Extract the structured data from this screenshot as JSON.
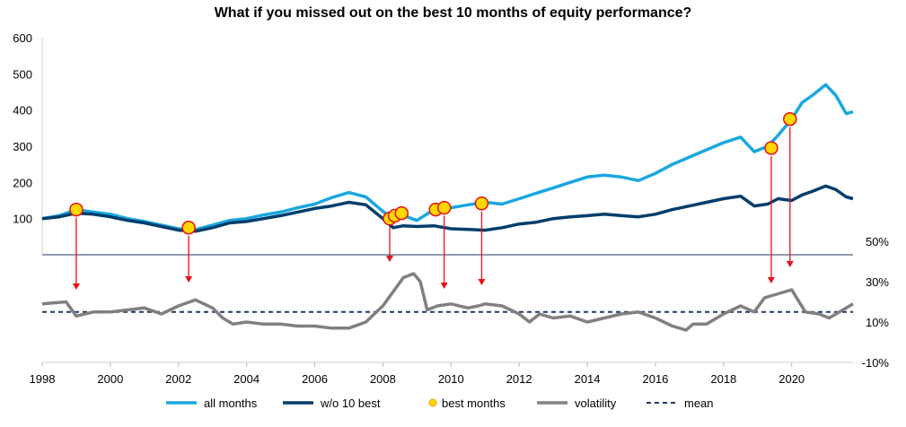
{
  "chart_data": {
    "type": "line",
    "title": "What if you missed out on the best 10 months of equity performance?",
    "x_ticks": [
      "1998",
      "2000",
      "2002",
      "2004",
      "2006",
      "2008",
      "2010",
      "2012",
      "2014",
      "2016",
      "2018",
      "2020"
    ],
    "xlim": [
      1998,
      2021.8
    ],
    "top_panel": {
      "ylim": [
        0,
        600
      ],
      "y_ticks": [
        "600",
        "500",
        "400",
        "300",
        "200",
        "100"
      ],
      "series": [
        {
          "name": "all months",
          "color": "#1aa7e0",
          "points": [
            [
              1998,
              100
            ],
            [
              1998.5,
              108
            ],
            [
              1999,
              125
            ],
            [
              1999.5,
              118
            ],
            [
              2000,
              112
            ],
            [
              2000.5,
              100
            ],
            [
              2001,
              92
            ],
            [
              2001.5,
              82
            ],
            [
              2002,
              72
            ],
            [
              2002.5,
              70
            ],
            [
              2003,
              82
            ],
            [
              2003.5,
              95
            ],
            [
              2004,
              100
            ],
            [
              2004.5,
              110
            ],
            [
              2005,
              118
            ],
            [
              2005.5,
              130
            ],
            [
              2006,
              140
            ],
            [
              2006.5,
              158
            ],
            [
              2007,
              172
            ],
            [
              2007.5,
              160
            ],
            [
              2008,
              120
            ],
            [
              2008.3,
              100
            ],
            [
              2008.6,
              108
            ],
            [
              2009,
              95
            ],
            [
              2009.5,
              125
            ],
            [
              2010,
              130
            ],
            [
              2010.5,
              138
            ],
            [
              2011,
              145
            ],
            [
              2011.5,
              140
            ],
            [
              2012,
              155
            ],
            [
              2012.5,
              170
            ],
            [
              2013,
              185
            ],
            [
              2013.5,
              200
            ],
            [
              2014,
              215
            ],
            [
              2014.5,
              220
            ],
            [
              2015,
              215
            ],
            [
              2015.5,
              205
            ],
            [
              2016,
              225
            ],
            [
              2016.5,
              250
            ],
            [
              2017,
              270
            ],
            [
              2017.5,
              290
            ],
            [
              2018,
              310
            ],
            [
              2018.5,
              325
            ],
            [
              2018.9,
              285
            ],
            [
              2019.3,
              300
            ],
            [
              2019.6,
              330
            ],
            [
              2020,
              375
            ],
            [
              2020.3,
              420
            ],
            [
              2020.6,
              440
            ],
            [
              2021,
              470
            ],
            [
              2021.3,
              440
            ],
            [
              2021.6,
              390
            ],
            [
              2021.8,
              395
            ]
          ]
        },
        {
          "name": "w/o 10 best",
          "color": "#003d6b",
          "points": [
            [
              1998,
              100
            ],
            [
              1998.5,
              105
            ],
            [
              1999,
              115
            ],
            [
              1999.5,
              112
            ],
            [
              2000,
              105
            ],
            [
              2000.5,
              95
            ],
            [
              2001,
              88
            ],
            [
              2001.5,
              78
            ],
            [
              2002,
              68
            ],
            [
              2002.5,
              65
            ],
            [
              2003,
              75
            ],
            [
              2003.5,
              88
            ],
            [
              2004,
              92
            ],
            [
              2004.5,
              100
            ],
            [
              2005,
              108
            ],
            [
              2005.5,
              118
            ],
            [
              2006,
              128
            ],
            [
              2006.5,
              135
            ],
            [
              2007,
              145
            ],
            [
              2007.5,
              138
            ],
            [
              2008,
              100
            ],
            [
              2008.3,
              75
            ],
            [
              2008.6,
              80
            ],
            [
              2009,
              78
            ],
            [
              2009.5,
              80
            ],
            [
              2010,
              72
            ],
            [
              2010.5,
              70
            ],
            [
              2011,
              68
            ],
            [
              2011.5,
              75
            ],
            [
              2012,
              85
            ],
            [
              2012.5,
              90
            ],
            [
              2013,
              100
            ],
            [
              2013.5,
              105
            ],
            [
              2014,
              108
            ],
            [
              2014.5,
              112
            ],
            [
              2015,
              108
            ],
            [
              2015.5,
              105
            ],
            [
              2016,
              112
            ],
            [
              2016.5,
              125
            ],
            [
              2017,
              135
            ],
            [
              2017.5,
              145
            ],
            [
              2018,
              155
            ],
            [
              2018.5,
              162
            ],
            [
              2018.9,
              135
            ],
            [
              2019.3,
              140
            ],
            [
              2019.6,
              155
            ],
            [
              2020,
              150
            ],
            [
              2020.3,
              165
            ],
            [
              2020.6,
              175
            ],
            [
              2021,
              190
            ],
            [
              2021.3,
              180
            ],
            [
              2021.6,
              160
            ],
            [
              2021.8,
              155
            ]
          ]
        }
      ],
      "best_months": [
        {
          "x": 1999.0,
          "y": 125
        },
        {
          "x": 2002.3,
          "y": 75
        },
        {
          "x": 2008.2,
          "y": 100
        },
        {
          "x": 2008.35,
          "y": 108
        },
        {
          "x": 2008.55,
          "y": 115
        },
        {
          "x": 2009.55,
          "y": 125
        },
        {
          "x": 2009.8,
          "y": 130
        },
        {
          "x": 2010.9,
          "y": 142
        },
        {
          "x": 2019.4,
          "y": 295
        },
        {
          "x": 2019.95,
          "y": 375
        }
      ],
      "best_months_name": "best months",
      "best_months_fill": "#ffd700",
      "best_months_stroke": "#e8101a"
    },
    "bottom_panel": {
      "ylim": [
        -10,
        50
      ],
      "y_ticks": [
        "50%",
        "30%",
        "10%",
        "-10%"
      ],
      "y_tick_values": [
        50,
        30,
        10,
        -10
      ],
      "volatility": {
        "name": "volatility",
        "color": "#808080",
        "points": [
          [
            1998,
            19
          ],
          [
            1998.7,
            20
          ],
          [
            1999,
            13
          ],
          [
            1999.5,
            15
          ],
          [
            2000,
            15
          ],
          [
            2000.5,
            16
          ],
          [
            2001,
            17
          ],
          [
            2001.5,
            14
          ],
          [
            2002,
            18
          ],
          [
            2002.5,
            21
          ],
          [
            2003,
            17
          ],
          [
            2003.3,
            12
          ],
          [
            2003.6,
            9
          ],
          [
            2004,
            10
          ],
          [
            2004.5,
            9
          ],
          [
            2005,
            9
          ],
          [
            2005.5,
            8
          ],
          [
            2006,
            8
          ],
          [
            2006.5,
            7
          ],
          [
            2007,
            7
          ],
          [
            2007.5,
            10
          ],
          [
            2008,
            18
          ],
          [
            2008.3,
            25
          ],
          [
            2008.6,
            32
          ],
          [
            2008.9,
            34
          ],
          [
            2009.1,
            30
          ],
          [
            2009.3,
            16
          ],
          [
            2009.6,
            18
          ],
          [
            2010,
            19
          ],
          [
            2010.5,
            17
          ],
          [
            2010.8,
            18
          ],
          [
            2011,
            19
          ],
          [
            2011.5,
            18
          ],
          [
            2012,
            14
          ],
          [
            2012.3,
            10
          ],
          [
            2012.6,
            14
          ],
          [
            2013,
            12
          ],
          [
            2013.5,
            13
          ],
          [
            2014,
            10
          ],
          [
            2014.5,
            12
          ],
          [
            2015,
            14
          ],
          [
            2015.5,
            15
          ],
          [
            2016,
            12
          ],
          [
            2016.5,
            8
          ],
          [
            2016.9,
            6
          ],
          [
            2017.1,
            9
          ],
          [
            2017.5,
            9
          ],
          [
            2018,
            14
          ],
          [
            2018.5,
            18
          ],
          [
            2018.9,
            15
          ],
          [
            2019.2,
            22
          ],
          [
            2019.6,
            24
          ],
          [
            2020,
            26
          ],
          [
            2020.4,
            15
          ],
          [
            2020.8,
            14
          ],
          [
            2021.1,
            12
          ],
          [
            2021.5,
            16
          ],
          [
            2021.8,
            19
          ]
        ]
      },
      "mean": {
        "name": "mean",
        "value": 15,
        "color": "#1f3a60"
      }
    },
    "legend": [
      "all months",
      "w/o 10 best",
      "best months",
      "volatility",
      "mean"
    ],
    "legend_position": "bottom"
  }
}
